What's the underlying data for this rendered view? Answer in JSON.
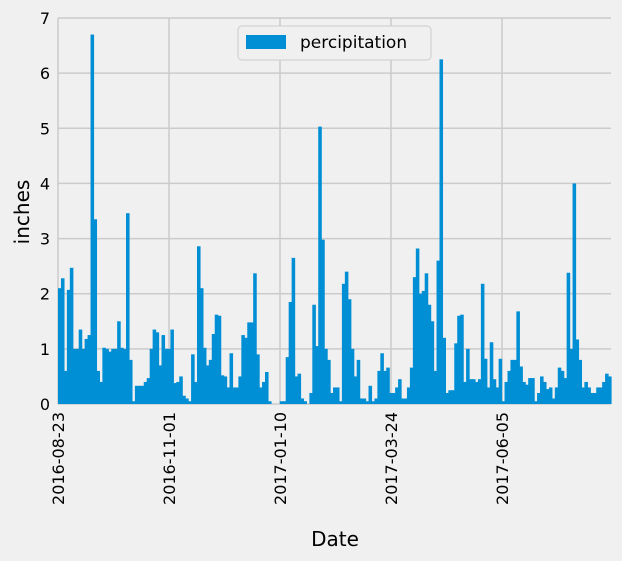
{
  "chart_data": {
    "type": "bar",
    "title": "",
    "xlabel": "Date",
    "ylabel": "inches",
    "ylim": [
      0,
      7
    ],
    "yticks": [
      "0",
      "1",
      "2",
      "3",
      "4",
      "5",
      "6",
      "7"
    ],
    "xticks": [
      "2016-08-23",
      "2016-11-01",
      "2017-01-10",
      "2017-03-24",
      "2017-06-05"
    ],
    "grid": true,
    "legend_position": "top-center",
    "series": [
      {
        "name": "percipitation",
        "color": "#008fd5",
        "values": [
          2.1,
          2.28,
          0.6,
          2.07,
          2.47,
          1.0,
          1.0,
          1.35,
          1.0,
          1.18,
          1.25,
          6.7,
          3.35,
          0.6,
          0.4,
          1.02,
          1.0,
          0.95,
          1.0,
          1.0,
          1.5,
          1.02,
          1.0,
          3.46,
          0.8,
          0.05,
          0.33,
          0.33,
          0.33,
          0.4,
          0.47,
          1.0,
          1.35,
          1.3,
          0.7,
          1.25,
          1.0,
          1.0,
          1.35,
          0.38,
          0.4,
          0.5,
          0.15,
          0.1,
          0.05,
          0.9,
          0.4,
          2.86,
          2.1,
          1.02,
          0.7,
          0.8,
          1.27,
          1.62,
          1.6,
          0.52,
          0.5,
          0.3,
          0.92,
          0.3,
          0.3,
          0.5,
          1.25,
          1.2,
          1.48,
          1.48,
          2.37,
          0.9,
          0.3,
          0.4,
          0.58,
          0.05,
          0.0,
          0.0,
          0.0,
          0.05,
          0.05,
          0.85,
          1.85,
          2.65,
          0.5,
          0.55,
          0.1,
          0.05,
          0.0,
          0.2,
          1.8,
          1.05,
          5.03,
          2.98,
          1.0,
          0.8,
          0.2,
          0.3,
          0.3,
          0.05,
          2.18,
          2.4,
          1.9,
          1.0,
          0.5,
          0.8,
          0.1,
          0.1,
          0.05,
          0.33,
          0.05,
          0.1,
          0.6,
          0.92,
          0.6,
          0.66,
          0.2,
          0.2,
          0.3,
          0.45,
          0.1,
          0.1,
          0.3,
          0.66,
          2.3,
          2.82,
          2.0,
          2.05,
          2.37,
          1.8,
          1.5,
          0.6,
          2.6,
          6.25,
          1.2,
          0.2,
          0.25,
          0.25,
          1.1,
          1.6,
          1.62,
          0.4,
          1.0,
          0.45,
          0.45,
          0.4,
          0.45,
          2.18,
          0.82,
          0.3,
          1.12,
          0.45,
          0.3,
          0.82,
          0.05,
          0.4,
          0.6,
          0.8,
          0.8,
          1.68,
          0.68,
          0.4,
          0.35,
          0.47,
          0.47,
          0.05,
          0.2,
          0.5,
          0.4,
          0.27,
          0.3,
          0.1,
          0.3,
          0.66,
          0.6,
          0.47,
          2.38,
          1.0,
          4.0,
          1.17,
          0.8,
          0.3,
          0.4,
          0.3,
          0.2,
          0.2,
          0.3,
          0.3,
          0.4,
          0.55,
          0.5
        ]
      }
    ]
  }
}
